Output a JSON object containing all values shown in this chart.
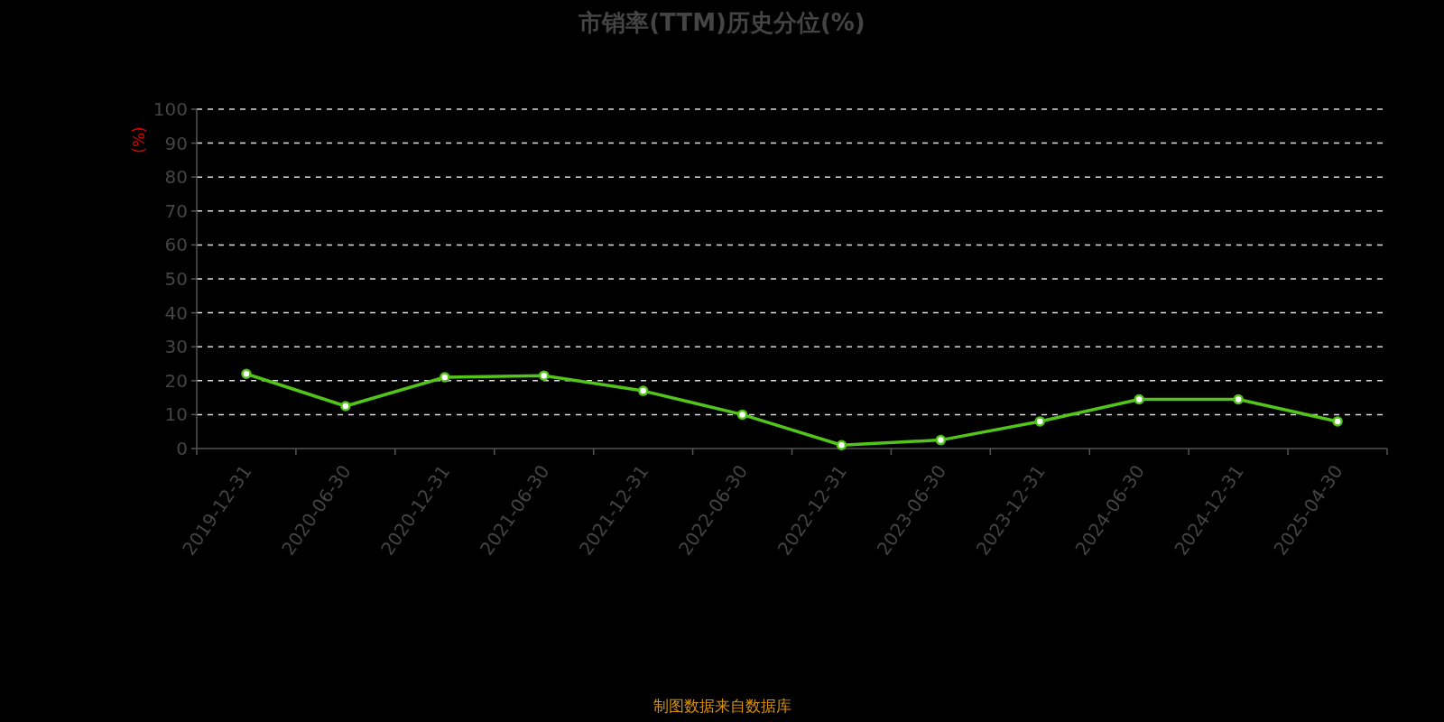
{
  "chart_data": {
    "type": "line",
    "title": "市销率(TTM)历史分位(%)",
    "ylabel": "(%)",
    "annotations": [
      "制图数据来自数据库"
    ],
    "categories": [
      "2019-12-31",
      "2020-06-30",
      "2020-12-31",
      "2021-06-30",
      "2021-12-31",
      "2022-06-30",
      "2022-12-31",
      "2023-06-30",
      "2023-12-31",
      "2024-06-30",
      "2024-12-31",
      "2025-04-30"
    ],
    "series": [
      {
        "color": "#52c41a",
        "values": [
          22,
          12.5,
          21,
          21.5,
          17,
          10,
          1,
          2.5,
          8,
          14.5,
          14.5,
          8
        ]
      }
    ],
    "ylim": [
      0,
      100
    ],
    "yticks": [
      0,
      10,
      20,
      30,
      40,
      50,
      60,
      70,
      80,
      90,
      100
    ],
    "grid": "y",
    "marker": "circle",
    "line_style": "solid"
  }
}
